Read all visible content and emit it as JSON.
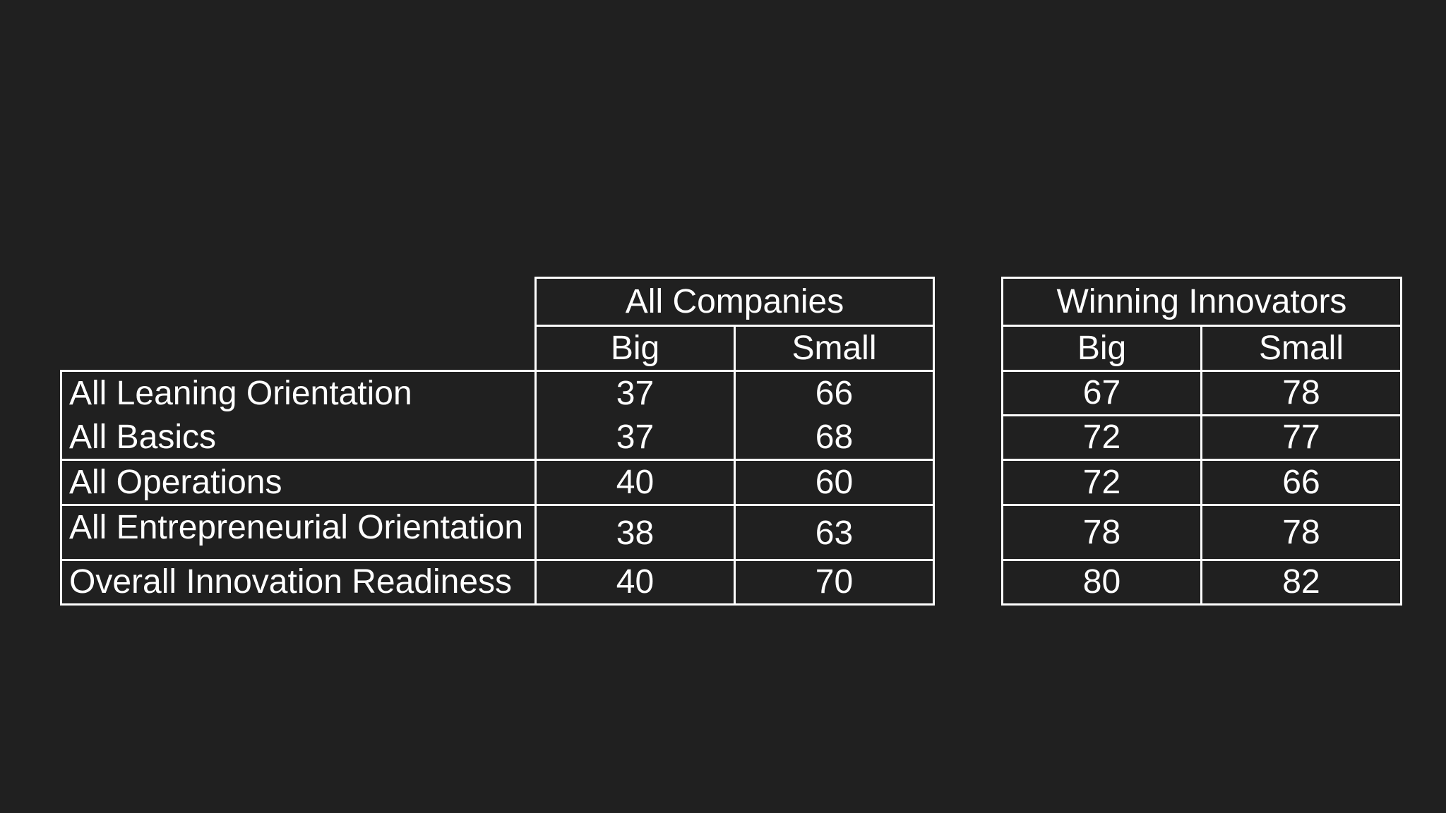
{
  "colors": {
    "background": "#202020",
    "text": "#ffffff",
    "rule": "#ffffff"
  },
  "tables": [
    {
      "group_header": "All Companies",
      "columns": [
        "Big",
        "Small"
      ]
    },
    {
      "group_header": "Winning Innovators",
      "columns": [
        "Big",
        "Small"
      ]
    }
  ],
  "rows": [
    {
      "label": "All Leaning Orientation",
      "all_companies": {
        "big": "37",
        "small": "66"
      },
      "winning_innovators": {
        "big": "67",
        "small": "78"
      }
    },
    {
      "label": "All Basics",
      "all_companies": {
        "big": "37",
        "small": "68"
      },
      "winning_innovators": {
        "big": "72",
        "small": "77"
      }
    },
    {
      "label": "All Operations",
      "all_companies": {
        "big": "40",
        "small": "60"
      },
      "winning_innovators": {
        "big": "72",
        "small": "66"
      }
    },
    {
      "label": "All Entrepreneurial Orientation",
      "all_companies": {
        "big": "38",
        "small": "63"
      },
      "winning_innovators": {
        "big": "78",
        "small": "78"
      }
    },
    {
      "label": "Overall Innovation Readiness",
      "all_companies": {
        "big": "40",
        "small": "70"
      },
      "winning_innovators": {
        "big": "80",
        "small": "82"
      }
    }
  ]
}
